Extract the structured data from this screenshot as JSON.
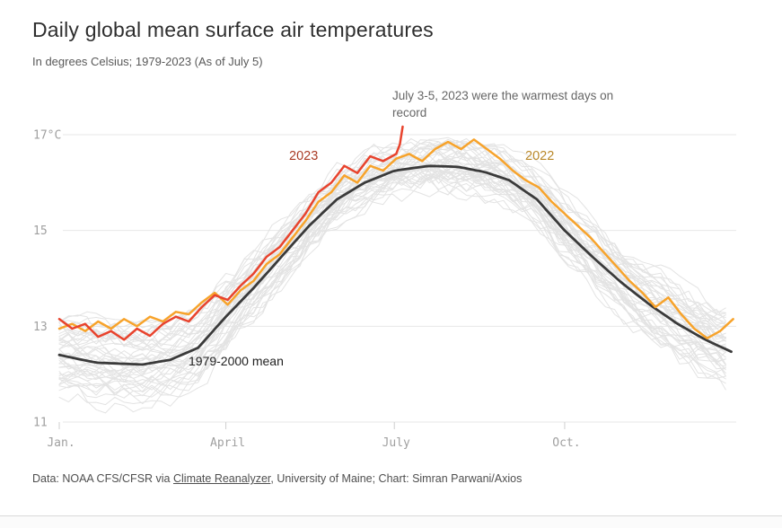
{
  "title": "Daily global mean surface air temperatures",
  "subtitle": "In degrees Celsius; 1979-2023 (As of July 5)",
  "annotation": {
    "text": "July 3-5, 2023 were the warmest days on record",
    "color": "#666666"
  },
  "footer": {
    "prefix": "Data: NOAA CFS/CFSR via ",
    "link": "Climate Reanalyzer",
    "suffix": ", University of Maine; Chart: Simran Parwani/Axios"
  },
  "chart_data": {
    "type": "line",
    "title": "Daily global mean surface air temperatures",
    "unit": "degrees Celsius",
    "x_axis": {
      "ticks": [
        "Jan.",
        "April",
        "July",
        "Oct."
      ],
      "tick_days": [
        0,
        90,
        181,
        273
      ],
      "domain_days": [
        0,
        364
      ],
      "grid": false
    },
    "y_axis": {
      "ticks": [
        17,
        15,
        13,
        11
      ],
      "tick_labels": [
        "17°C",
        "15",
        "13",
        "11"
      ],
      "range": [
        11,
        17
      ],
      "grid": true,
      "grid_color": "#e7e7e7",
      "tick_color": "#cfcfcf",
      "label_color": "#a0a0a0"
    },
    "series": [
      {
        "name": "2023",
        "color": "#e8432d",
        "label_color": "#a93b25",
        "sample_step_days": 7,
        "values": [
          13.15,
          12.95,
          13.05,
          12.78,
          12.9,
          12.72,
          12.95,
          12.8,
          13.05,
          13.2,
          13.1,
          13.4,
          13.65,
          13.55,
          13.85,
          14.1,
          14.45,
          14.65,
          15.0,
          15.35,
          15.8,
          16.0,
          16.35,
          16.2,
          16.55,
          16.45,
          16.6
        ],
        "extra_points": [
          [
            184,
            16.8
          ],
          [
            185.5,
            17.17
          ]
        ],
        "note": "partial year through July 5; July 3-5 spike to 17.17"
      },
      {
        "name": "2022",
        "color": "#f7a32b",
        "label_color": "#b9882a",
        "sample_step_days": 7,
        "values": [
          12.95,
          13.05,
          12.9,
          13.1,
          12.95,
          13.15,
          13.0,
          13.2,
          13.1,
          13.3,
          13.25,
          13.5,
          13.7,
          13.45,
          13.75,
          13.95,
          14.3,
          14.5,
          14.85,
          15.2,
          15.6,
          15.8,
          16.15,
          16.0,
          16.35,
          16.25,
          16.5,
          16.6,
          16.45,
          16.7,
          16.85,
          16.7,
          16.9,
          16.7,
          16.5,
          16.25,
          16.05,
          15.9,
          15.6,
          15.35,
          15.1,
          14.85,
          14.55,
          14.25,
          13.95,
          13.7,
          13.4,
          13.6,
          13.25,
          12.95,
          12.75,
          12.9,
          13.15
        ]
      },
      {
        "name": "1979-2000 mean",
        "color": "#3a3a3a",
        "label_color": "#222222",
        "anchors": [
          [
            0,
            12.4
          ],
          [
            20,
            12.24
          ],
          [
            45,
            12.2
          ],
          [
            60,
            12.3
          ],
          [
            75,
            12.55
          ],
          [
            90,
            13.2
          ],
          [
            105,
            13.8
          ],
          [
            120,
            14.45
          ],
          [
            135,
            15.1
          ],
          [
            150,
            15.65
          ],
          [
            165,
            16.0
          ],
          [
            181,
            16.25
          ],
          [
            200,
            16.35
          ],
          [
            215,
            16.33
          ],
          [
            230,
            16.22
          ],
          [
            243,
            16.05
          ],
          [
            258,
            15.65
          ],
          [
            273,
            15.0
          ],
          [
            288,
            14.45
          ],
          [
            304,
            13.9
          ],
          [
            319,
            13.45
          ],
          [
            334,
            13.05
          ],
          [
            349,
            12.72
          ],
          [
            364,
            12.45
          ]
        ]
      }
    ],
    "background_years": {
      "from": 1979,
      "to": 2022,
      "count": 44,
      "color": "#e3e3e3",
      "offset_range_degC": [
        -0.6,
        0.65
      ],
      "description": "one light gray wiggly line per year 1979-2022, spread around the 1979-2000 mean, warmer years higher"
    }
  }
}
